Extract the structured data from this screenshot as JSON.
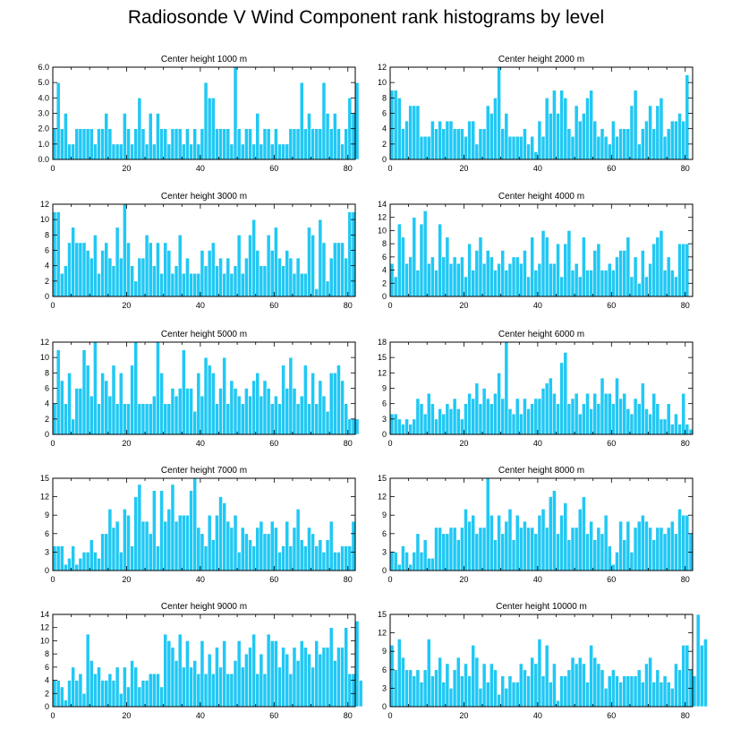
{
  "title": "Radiosonde V Wind Component rank histograms by level",
  "colors": {
    "bar": "#20c8f4",
    "bar_edge": "#ffffff",
    "frame": "#000000"
  },
  "chart_data": [
    {
      "type": "bar",
      "title": "Center height 1000 m",
      "xlim": [
        0,
        82
      ],
      "ylim": [
        0,
        6
      ],
      "xticks": [
        0,
        20,
        40,
        60,
        80
      ],
      "yticks": [
        0,
        1,
        2,
        3,
        4,
        5,
        6
      ],
      "ytick_labels": [
        "0.0",
        "1.0",
        "2.0",
        "3.0",
        "4.0",
        "5.0",
        "6.0"
      ],
      "values": [
        2,
        5,
        2,
        3,
        1,
        1,
        2,
        2,
        2,
        2,
        2,
        1,
        2,
        2,
        3,
        2,
        1,
        1,
        1,
        3,
        2,
        1,
        2,
        4,
        2,
        1,
        3,
        1,
        3,
        2,
        2,
        1,
        2,
        2,
        2,
        1,
        2,
        1,
        2,
        1,
        2,
        5,
        4,
        4,
        2,
        2,
        2,
        2,
        1,
        6,
        2,
        1,
        2,
        2,
        1,
        3,
        1,
        2,
        2,
        1,
        2,
        1,
        1,
        1,
        2,
        2,
        2,
        5,
        2,
        3,
        2,
        2,
        2,
        5,
        3,
        2,
        3,
        2,
        1,
        2,
        4,
        3,
        5
      ]
    },
    {
      "type": "bar",
      "title": "Center height 2000 m",
      "xlim": [
        0,
        82
      ],
      "ylim": [
        0,
        12
      ],
      "xticks": [
        0,
        20,
        40,
        60,
        80
      ],
      "yticks": [
        0,
        2,
        4,
        6,
        8,
        10,
        12
      ],
      "ytick_labels": [
        "0",
        "2",
        "4",
        "6",
        "8",
        "10",
        "12"
      ],
      "values": [
        9,
        9,
        8,
        4,
        5,
        7,
        7,
        7,
        3,
        3,
        3,
        5,
        4,
        5,
        4,
        5,
        5,
        4,
        4,
        4,
        3,
        5,
        5,
        2,
        4,
        4,
        7,
        6,
        8,
        12,
        4,
        6,
        3,
        3,
        3,
        3,
        4,
        2,
        3,
        1,
        5,
        3,
        8,
        6,
        9,
        6,
        9,
        8,
        4,
        3,
        7,
        5,
        6,
        8,
        9,
        5,
        3,
        4,
        3,
        2,
        5,
        3,
        4,
        4,
        4,
        7,
        9,
        2,
        4,
        5,
        7,
        4,
        7,
        8,
        3,
        4,
        5,
        5,
        6,
        5,
        11
      ]
    },
    {
      "type": "bar",
      "title": "Center height 3000 m",
      "xlim": [
        0,
        82
      ],
      "ylim": [
        0,
        12
      ],
      "xticks": [
        0,
        20,
        40,
        60,
        80
      ],
      "yticks": [
        0,
        2,
        4,
        6,
        8,
        10,
        12
      ],
      "ytick_labels": [
        "0",
        "2",
        "4",
        "6",
        "8",
        "10",
        "12"
      ],
      "values": [
        11,
        11,
        3,
        4,
        7,
        9,
        7,
        7,
        7,
        6,
        5,
        8,
        3,
        6,
        7,
        5,
        4,
        9,
        5,
        12,
        7,
        4,
        2,
        5,
        5,
        8,
        7,
        4,
        7,
        3,
        7,
        6,
        3,
        4,
        8,
        3,
        5,
        3,
        3,
        3,
        6,
        4,
        6,
        7,
        4,
        5,
        3,
        5,
        3,
        4,
        8,
        3,
        5,
        8,
        10,
        6,
        4,
        4,
        8,
        6,
        9,
        5,
        4,
        6,
        5,
        3,
        5,
        3,
        3,
        9,
        8,
        1,
        10,
        7,
        2,
        5,
        7,
        7,
        7,
        5,
        11,
        11
      ]
    },
    {
      "type": "bar",
      "title": "Center height 4000 m",
      "xlim": [
        0,
        82
      ],
      "ylim": [
        0,
        14
      ],
      "xticks": [
        0,
        20,
        40,
        60,
        80
      ],
      "yticks": [
        0,
        2,
        4,
        6,
        8,
        10,
        12,
        14
      ],
      "ytick_labels": [
        "0",
        "2",
        "4",
        "6",
        "8",
        "10",
        "12",
        "14"
      ],
      "values": [
        5,
        3,
        11,
        9,
        5,
        6,
        12,
        4,
        11,
        13,
        5,
        6,
        4,
        11,
        6,
        9,
        5,
        6,
        5,
        6,
        3,
        8,
        4,
        7,
        9,
        5,
        7,
        6,
        4,
        5,
        7,
        4,
        5,
        6,
        6,
        5,
        7,
        3,
        9,
        4,
        5,
        10,
        9,
        5,
        5,
        8,
        3,
        8,
        10,
        4,
        5,
        3,
        9,
        4,
        4,
        7,
        8,
        4,
        4,
        5,
        4,
        6,
        7,
        7,
        9,
        3,
        6,
        2,
        7,
        3,
        5,
        8,
        9,
        10,
        4,
        6,
        4,
        3,
        8,
        8,
        8
      ]
    },
    {
      "type": "bar",
      "title": "Center height 5000 m",
      "xlim": [
        0,
        82
      ],
      "ylim": [
        0,
        12
      ],
      "xticks": [
        0,
        20,
        40,
        60,
        80
      ],
      "yticks": [
        0,
        2,
        4,
        6,
        8,
        10,
        12
      ],
      "ytick_labels": [
        "0",
        "2",
        "4",
        "6",
        "8",
        "10",
        "12"
      ],
      "values": [
        4,
        11,
        7,
        4,
        8,
        2,
        6,
        6,
        11,
        9,
        5,
        12,
        4,
        8,
        7,
        5,
        9,
        4,
        8,
        4,
        4,
        9,
        12,
        4,
        4,
        4,
        4,
        5,
        12,
        8,
        4,
        4,
        6,
        5,
        6,
        11,
        6,
        6,
        3,
        8,
        5,
        10,
        9,
        8,
        4,
        6,
        10,
        4,
        7,
        6,
        5,
        4,
        6,
        5,
        7,
        8,
        5,
        7,
        6,
        4,
        5,
        4,
        9,
        6,
        10,
        6,
        4,
        5,
        9,
        4,
        8,
        4,
        7,
        5,
        3,
        8,
        8,
        9,
        7,
        4,
        2,
        2,
        2
      ]
    },
    {
      "type": "bar",
      "title": "Center height 6000 m",
      "xlim": [
        0,
        82
      ],
      "ylim": [
        0,
        18
      ],
      "xticks": [
        0,
        20,
        40,
        60,
        80
      ],
      "yticks": [
        0,
        3,
        6,
        9,
        12,
        15,
        18
      ],
      "ytick_labels": [
        "0",
        "3",
        "6",
        "9",
        "12",
        "15",
        "18"
      ],
      "values": [
        4,
        4,
        3,
        2,
        3,
        2,
        3,
        7,
        6,
        4,
        8,
        6,
        3,
        5,
        4,
        6,
        5,
        7,
        5,
        3,
        6,
        8,
        7,
        10,
        6,
        9,
        7,
        6,
        8,
        12,
        7,
        18,
        5,
        4,
        7,
        4,
        7,
        5,
        6,
        7,
        7,
        9,
        10,
        11,
        8,
        6,
        14,
        16,
        6,
        7,
        8,
        4,
        6,
        8,
        5,
        8,
        6,
        11,
        8,
        8,
        6,
        11,
        7,
        8,
        5,
        4,
        7,
        6,
        10,
        5,
        4,
        8,
        6,
        3,
        3,
        6,
        2,
        4,
        2,
        8,
        2,
        1
      ]
    },
    {
      "type": "bar",
      "title": "Center height 7000 m",
      "xlim": [
        0,
        82
      ],
      "ylim": [
        0,
        15
      ],
      "xticks": [
        0,
        20,
        40,
        60,
        80
      ],
      "yticks": [
        0,
        3,
        6,
        9,
        12,
        15
      ],
      "ytick_labels": [
        "0",
        "3",
        "6",
        "9",
        "12",
        "15"
      ],
      "values": [
        4,
        4,
        4,
        1,
        2,
        4,
        1,
        2,
        3,
        3,
        5,
        3,
        2,
        6,
        6,
        10,
        7,
        8,
        3,
        10,
        9,
        4,
        12,
        14,
        8,
        8,
        6,
        13,
        4,
        13,
        8,
        10,
        14,
        8,
        9,
        9,
        9,
        13,
        15,
        7,
        6,
        4,
        9,
        5,
        9,
        12,
        11,
        8,
        7,
        9,
        3,
        7,
        6,
        5,
        4,
        7,
        8,
        6,
        6,
        8,
        7,
        3,
        4,
        8,
        4,
        7,
        10,
        5,
        4,
        7,
        6,
        4,
        5,
        3,
        5,
        8,
        3,
        3,
        4,
        4,
        4,
        8
      ]
    },
    {
      "type": "bar",
      "title": "Center height 8000 m",
      "xlim": [
        0,
        82
      ],
      "ylim": [
        0,
        15
      ],
      "xticks": [
        0,
        20,
        40,
        60,
        80
      ],
      "yticks": [
        0,
        3,
        6,
        9,
        12,
        15
      ],
      "ytick_labels": [
        "0",
        "3",
        "6",
        "9",
        "12",
        "15"
      ],
      "values": [
        3,
        3,
        1,
        4,
        3,
        1,
        3,
        6,
        3,
        5,
        2,
        2,
        7,
        7,
        6,
        6,
        7,
        7,
        5,
        7,
        10,
        8,
        9,
        6,
        7,
        7,
        15,
        9,
        5,
        9,
        6,
        8,
        10,
        5,
        9,
        7,
        8,
        7,
        7,
        6,
        9,
        10,
        7,
        12,
        13,
        6,
        9,
        11,
        5,
        7,
        7,
        10,
        12,
        6,
        8,
        5,
        7,
        6,
        9,
        4,
        1,
        3,
        8,
        5,
        8,
        3,
        7,
        8,
        9,
        8,
        7,
        5,
        7,
        7,
        6,
        7,
        8,
        6,
        10,
        9,
        9,
        6
      ]
    },
    {
      "type": "bar",
      "title": "Center height 9000 m",
      "xlim": [
        0,
        82
      ],
      "ylim": [
        0,
        14
      ],
      "xticks": [
        0,
        20,
        40,
        60,
        80
      ],
      "yticks": [
        0,
        2,
        4,
        6,
        8,
        10,
        12,
        14
      ],
      "ytick_labels": [
        "0",
        "2",
        "4",
        "6",
        "8",
        "10",
        "12",
        "14"
      ],
      "values": [
        4,
        4,
        3,
        1,
        4,
        6,
        4,
        5,
        2,
        11,
        7,
        5,
        6,
        4,
        4,
        5,
        4,
        6,
        2,
        6,
        3,
        7,
        6,
        3,
        4,
        4,
        5,
        5,
        5,
        3,
        11,
        10,
        9,
        7,
        11,
        6,
        10,
        6,
        7,
        5,
        10,
        5,
        8,
        5,
        9,
        6,
        10,
        5,
        5,
        7,
        10,
        6,
        8,
        9,
        11,
        5,
        8,
        5,
        11,
        10,
        10,
        6,
        9,
        8,
        5,
        9,
        7,
        10,
        9,
        8,
        6,
        10,
        8,
        9,
        9,
        12,
        7,
        9,
        9,
        12,
        5,
        5,
        13,
        4
      ]
    },
    {
      "type": "bar",
      "title": "Center height 10000 m",
      "xlim": [
        0,
        82
      ],
      "ylim": [
        0,
        15
      ],
      "xticks": [
        0,
        20,
        40,
        60,
        80
      ],
      "yticks": [
        0,
        3,
        6,
        9,
        12,
        15
      ],
      "ytick_labels": [
        "0",
        "3",
        "6",
        "9",
        "12",
        "15"
      ],
      "values": [
        10,
        6,
        11,
        8,
        6,
        6,
        5,
        6,
        4,
        6,
        11,
        5,
        6,
        8,
        4,
        7,
        3,
        6,
        8,
        5,
        7,
        5,
        10,
        8,
        3,
        7,
        4,
        7,
        6,
        2,
        5,
        3,
        5,
        4,
        4,
        7,
        6,
        5,
        8,
        7,
        11,
        5,
        10,
        4,
        7,
        1,
        5,
        5,
        6,
        8,
        7,
        8,
        7,
        4,
        10,
        8,
        7,
        6,
        3,
        5,
        6,
        5,
        4,
        5,
        5,
        5,
        5,
        6,
        4,
        7,
        8,
        4,
        6,
        4,
        5,
        4,
        3,
        7,
        6,
        10,
        10,
        6,
        5,
        15,
        10,
        11
      ]
    }
  ]
}
